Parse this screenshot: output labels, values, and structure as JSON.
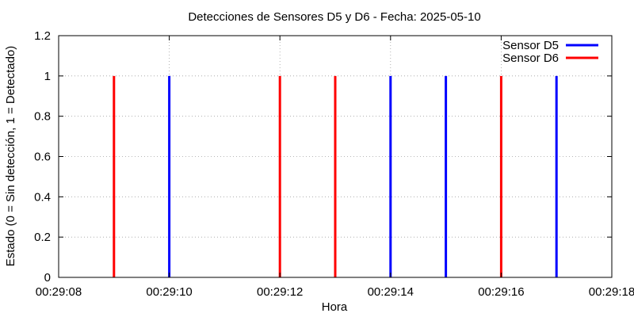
{
  "chart_data": {
    "type": "bar",
    "title": "Detecciones de Sensores D5 y D6 - Fecha: 2025-05-10",
    "xlabel": "Hora",
    "ylabel": "Estado (0 = Sin detección, 1 = Detectado)",
    "x_ticks": [
      "00:29:08",
      "00:29:10",
      "00:29:12",
      "00:29:14",
      "00:29:16",
      "00:29:18"
    ],
    "x_range_seconds": [
      8,
      18
    ],
    "y_ticks": [
      "0",
      "0.2",
      "0.4",
      "0.6",
      "0.8",
      "1",
      "1.2"
    ],
    "ylim": [
      0,
      1.2
    ],
    "grid": true,
    "legend_position": "top-right",
    "series": [
      {
        "name": "Sensor D5",
        "color": "#0000ff",
        "x": [
          "00:29:10",
          "00:29:14",
          "00:29:15",
          "00:29:17"
        ],
        "x_seconds": [
          10,
          14,
          15,
          17
        ],
        "values": [
          1,
          1,
          1,
          1
        ]
      },
      {
        "name": "Sensor D6",
        "color": "#ff0000",
        "x": [
          "00:29:09",
          "00:29:12",
          "00:29:13",
          "00:29:16"
        ],
        "x_seconds": [
          9,
          12,
          13,
          16
        ],
        "values": [
          1,
          1,
          1,
          1
        ]
      }
    ]
  }
}
